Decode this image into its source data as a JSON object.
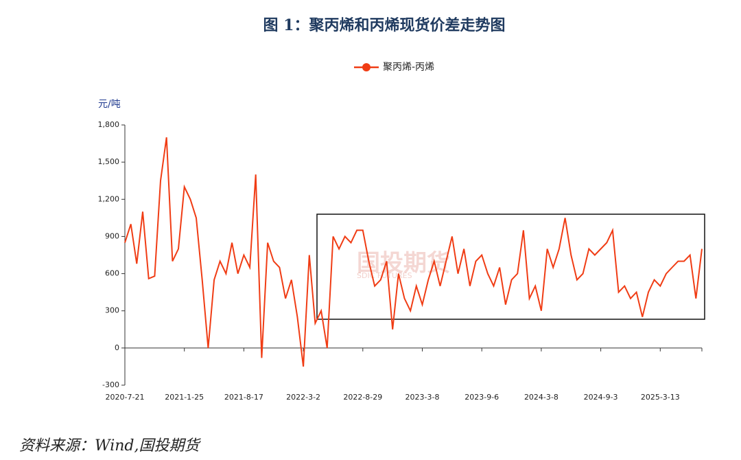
{
  "chart_data": {
    "type": "line",
    "title": "图 1：聚丙烯和丙烯现货价差走势图",
    "y_axis_label": "元/吨",
    "source": "资料来源：Wind,国投期货",
    "watermark": "国投期货",
    "watermark_sub": "SDIC FUTURES",
    "categories": [
      "2020-7-21",
      null,
      null,
      null,
      null,
      null,
      null,
      null,
      null,
      null,
      "2021-1-25",
      null,
      null,
      null,
      null,
      null,
      null,
      null,
      null,
      null,
      "2021-8-17",
      null,
      null,
      null,
      null,
      null,
      null,
      null,
      null,
      null,
      "2022-3-2",
      null,
      null,
      null,
      null,
      null,
      null,
      null,
      null,
      null,
      "2022-8-29",
      null,
      null,
      null,
      null,
      null,
      null,
      null,
      null,
      null,
      "2023-3-8",
      null,
      null,
      null,
      null,
      null,
      null,
      null,
      null,
      null,
      "2023-9-6",
      null,
      null,
      null,
      null,
      null,
      null,
      null,
      null,
      null,
      "2024-3-8",
      null,
      null,
      null,
      null,
      null,
      null,
      null,
      null,
      null,
      "2024-9-3",
      null,
      null,
      null,
      null,
      null,
      null,
      null,
      null,
      null,
      "2025-3-13",
      null,
      null,
      null,
      null,
      null,
      null,
      null
    ],
    "series": [
      {
        "name": "聚丙烯-丙烯",
        "color": "#f03c14",
        "values": [
          850,
          1000,
          680,
          1100,
          560,
          580,
          1350,
          1700,
          700,
          800,
          1300,
          1200,
          1050,
          550,
          0,
          550,
          700,
          600,
          850,
          600,
          750,
          650,
          1400,
          -80,
          850,
          700,
          650,
          400,
          550,
          250,
          -150,
          750,
          200,
          300,
          0,
          900,
          800,
          900,
          850,
          950,
          950,
          700,
          500,
          550,
          700,
          150,
          600,
          400,
          300,
          500,
          350,
          550,
          700,
          500,
          700,
          900,
          600,
          800,
          500,
          700,
          750,
          600,
          500,
          650,
          350,
          550,
          600,
          950,
          400,
          500,
          300,
          800,
          650,
          800,
          1050,
          750,
          550,
          600,
          800,
          750,
          800,
          850,
          950,
          450,
          500,
          400,
          450,
          250,
          450,
          550,
          500,
          600,
          650,
          700,
          700,
          750,
          400,
          800
        ]
      }
    ],
    "ylim": [
      -300,
      1800
    ],
    "yticks": [
      -300,
      0,
      300,
      600,
      900,
      {
        "value": 1200,
        "label": "1,200"
      },
      {
        "value": 1500,
        "label": "1,500"
      },
      {
        "value": 1800,
        "label": "1,800"
      }
    ],
    "legend": "top"
  }
}
